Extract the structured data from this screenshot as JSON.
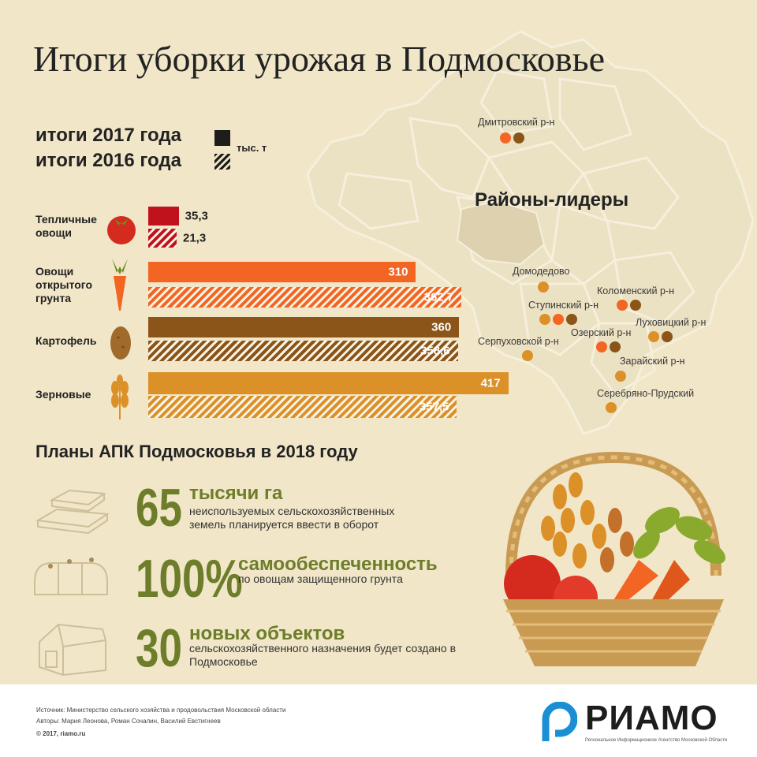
{
  "title": "Итоги уборки урожая в Подмосковье",
  "legend": {
    "year2017": "итоги 2017 года",
    "year2016": "итоги 2016 года",
    "unit": "тыс. т"
  },
  "categories": [
    {
      "label": "Тепличные овощи",
      "v2017": "35,3",
      "v2016": "21,3",
      "color": "#c0121c"
    },
    {
      "label": "Овощи открытого грунта",
      "v2017": "310",
      "v2016": "362,7",
      "color": "#f26522"
    },
    {
      "label": "Картофель",
      "v2017": "360",
      "v2016": "358,6",
      "color": "#8b5418"
    },
    {
      "label": "Зерновые",
      "v2017": "417",
      "v2016": "357,5",
      "color": "#dc9028"
    }
  ],
  "chart_data": {
    "type": "bar",
    "categories": [
      "Тепличные овощи",
      "Овощи открытого грунта",
      "Картофель",
      "Зерновые"
    ],
    "series": [
      {
        "name": "итоги 2017 года",
        "values": [
          35.3,
          310,
          360,
          417
        ]
      },
      {
        "name": "итоги 2016 года",
        "values": [
          21.3,
          362.7,
          358.6,
          357.5
        ]
      }
    ],
    "ylabel": "тыс. т"
  },
  "map": {
    "heading": "Районы-лидеры",
    "districts": [
      {
        "name": "Дмитровский р-н",
        "dots": [
          "#f26522",
          "#8b5418"
        ]
      },
      {
        "name": "Домодедово",
        "dots": [
          "#dc9028"
        ]
      },
      {
        "name": "Коломенский р-н",
        "dots": [
          "#f26522",
          "#8b5418"
        ]
      },
      {
        "name": "Ступинский р-н",
        "dots": [
          "#dc9028",
          "#f26522",
          "#8b5418"
        ]
      },
      {
        "name": "Луховицкий р-н",
        "dots": [
          "#dc9028",
          "#8b5418"
        ]
      },
      {
        "name": "Озерский р-н",
        "dots": [
          "#f26522",
          "#8b5418"
        ]
      },
      {
        "name": "Серпуховской р-н",
        "dots": [
          "#dc9028"
        ]
      },
      {
        "name": "Зарайский р-н",
        "dots": [
          "#dc9028"
        ]
      },
      {
        "name": "Серебряно-Прудский",
        "dots": [
          "#dc9028"
        ]
      }
    ]
  },
  "plans": {
    "title": "Планы АПК Подмосковья в 2018 году",
    "items": [
      {
        "number": "65",
        "head": "тысячи га",
        "desc": "неиспользуемых сельскохозяйственных земель планируется ввести в оборот",
        "icon": "land-layers-icon"
      },
      {
        "number": "100%",
        "head": "самообеспеченность",
        "desc": "по овощам защищенного грунта",
        "icon": "greenhouse-icon"
      },
      {
        "number": "30",
        "head": "новых объектов",
        "desc": "сельскохозяйственного назначения будет создано в Подмосковье",
        "icon": "barn-icon"
      }
    ]
  },
  "footer": {
    "source": "Источник: Министерство сельского хозяйства и продовольствия Московской области",
    "authors": "Авторы: Мария Леонова, Роман Сочалин, Василий Евстигнеев",
    "copyright": "© 2017, riamo.ru",
    "logo": "РИАМО",
    "logo_sub": "Региональное Информационное Агентство Московской Области"
  }
}
